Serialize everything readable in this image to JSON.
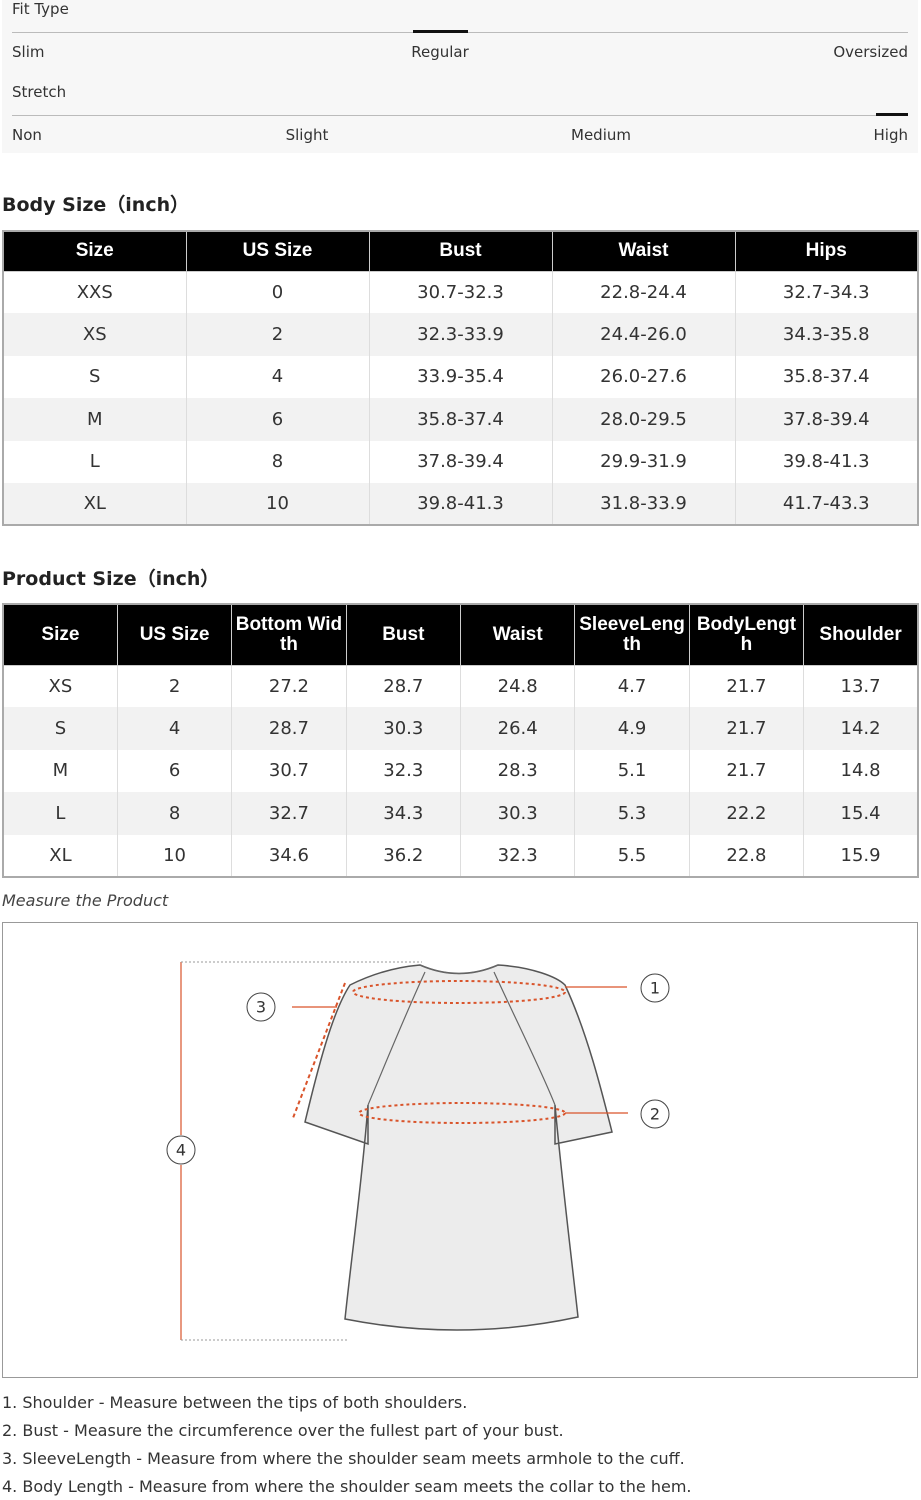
{
  "fit_type": {
    "title": "Fit Type",
    "labels": [
      "Slim",
      "Regular",
      "Oversized"
    ]
  },
  "stretch": {
    "title": "Stretch",
    "labels": [
      "Non",
      "Slight",
      "Medium",
      "High"
    ]
  },
  "body_size": {
    "title": "Body Size（inch）",
    "header": [
      "Size",
      "US Size",
      "Bust",
      "Waist",
      "Hips"
    ],
    "rows": [
      [
        "XXS",
        "0",
        "30.7-32.3",
        "22.8-24.4",
        "32.7-34.3"
      ],
      [
        "XS",
        "2",
        "32.3-33.9",
        "24.4-26.0",
        "34.3-35.8"
      ],
      [
        "S",
        "4",
        "33.9-35.4",
        "26.0-27.6",
        "35.8-37.4"
      ],
      [
        "M",
        "6",
        "35.8-37.4",
        "28.0-29.5",
        "37.8-39.4"
      ],
      [
        "L",
        "8",
        "37.8-39.4",
        "29.9-31.9",
        "39.8-41.3"
      ],
      [
        "XL",
        "10",
        "39.8-41.3",
        "31.8-33.9",
        "41.7-43.3"
      ]
    ]
  },
  "product_size": {
    "title": "Product Size（inch）",
    "header": [
      "Size",
      "US Size",
      "Bottom Width",
      "Bust",
      "Waist",
      "SleeveLength",
      "BodyLength",
      "Shoulder"
    ],
    "rows": [
      [
        "XS",
        "2",
        "27.2",
        "28.7",
        "24.8",
        "4.7",
        "21.7",
        "13.7"
      ],
      [
        "S",
        "4",
        "28.7",
        "30.3",
        "26.4",
        "4.9",
        "21.7",
        "14.2"
      ],
      [
        "M",
        "6",
        "30.7",
        "32.3",
        "28.3",
        "5.1",
        "21.7",
        "14.8"
      ],
      [
        "L",
        "8",
        "32.7",
        "34.3",
        "30.3",
        "5.3",
        "22.2",
        "15.4"
      ],
      [
        "XL",
        "10",
        "34.6",
        "36.2",
        "32.3",
        "5.5",
        "22.8",
        "15.9"
      ]
    ]
  },
  "measure": {
    "title": "Measure the Product",
    "markers": [
      "1",
      "2",
      "3",
      "4"
    ]
  },
  "notes": [
    "1. Shoulder - Measure between the tips of both shoulders.",
    "2. Bust - Measure the circumference over the fullest part of your bust.",
    "3. SleeveLength - Measure from where the shoulder seam meets armhole to the cuff.",
    "4. Body Length - Measure from where the shoulder seam meets the collar to the hem."
  ]
}
